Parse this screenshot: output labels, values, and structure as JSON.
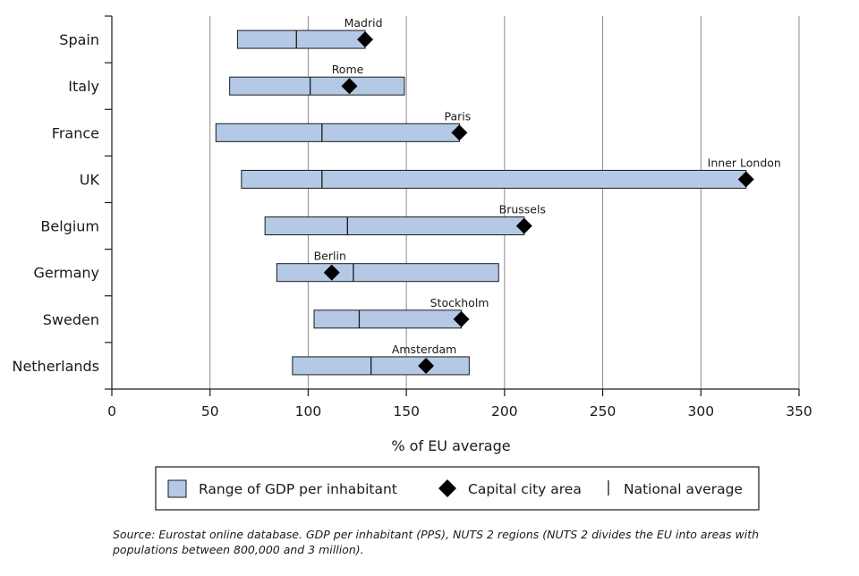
{
  "chart_data": {
    "type": "range-bar",
    "orientation": "horizontal",
    "xlabel": "% of EU average",
    "xlim": [
      0,
      350
    ],
    "xticks": [
      0,
      50,
      100,
      150,
      200,
      250,
      300,
      350
    ],
    "grid": "vertical",
    "categories": [
      "Spain",
      "Italy",
      "France",
      "UK",
      "Belgium",
      "Germany",
      "Sweden",
      "Netherlands"
    ],
    "range_min": [
      64,
      60,
      53,
      66,
      78,
      84,
      103,
      92
    ],
    "range_max": [
      129,
      149,
      177,
      323,
      210,
      197,
      178,
      182
    ],
    "national_average": [
      94,
      101,
      107,
      107,
      120,
      123,
      126,
      132
    ],
    "capital_value": [
      129,
      121,
      177,
      323,
      210,
      112,
      178,
      160
    ],
    "capital_names": [
      "Madrid",
      "Rome",
      "Paris",
      "Inner London",
      "Brussels",
      "Berlin",
      "Stockholm",
      "Amsterdam"
    ],
    "legend": {
      "position": "bottom",
      "range_label": "Range of GDP per inhabitant",
      "capital_label": "Capital city area",
      "average_label": "National average"
    },
    "colors": {
      "bar_fill": "#b4c9e6",
      "bar_stroke": "#1a1a1a",
      "marker": "#000000",
      "grid": "#8c8c8c",
      "axis": "#1a1a1a"
    }
  },
  "source_note": "Source: Eurostat online database. GDP per inhabitant (PPS), NUTS 2 regions (NUTS 2 divides the EU into areas with populations between 800,000 and 3 million)."
}
